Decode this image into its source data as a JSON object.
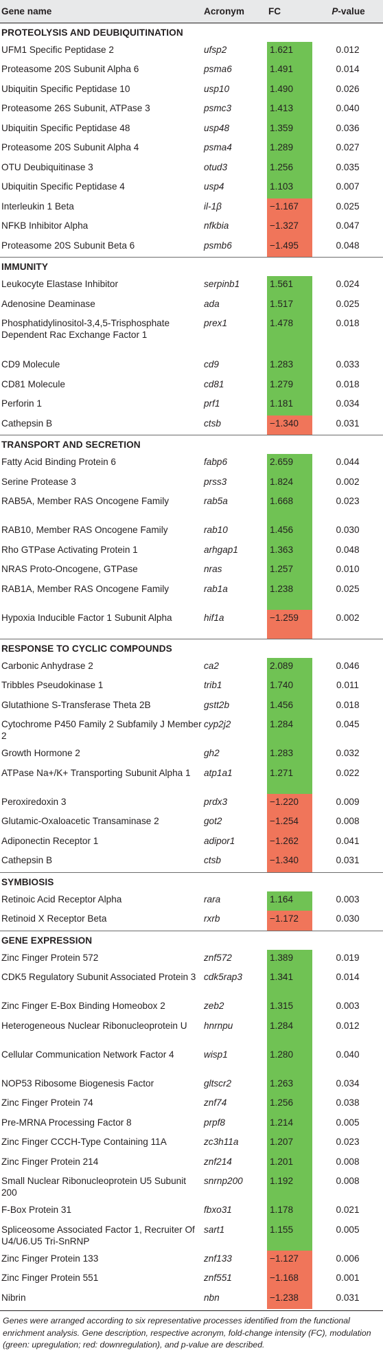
{
  "header": {
    "gene_name": "Gene name",
    "acronym": "Acronym",
    "fc": "FC",
    "pvalue_p": "P",
    "pvalue_rest": "-value"
  },
  "sections": [
    {
      "title": "PROTEOLYSIS AND DEUBIQUITINATION",
      "rows": [
        {
          "name": "UFM1 Specific Peptidase 2",
          "acronym": "ufsp2",
          "fc": "1.621",
          "reg": "up",
          "p": "0.012",
          "lines": 1
        },
        {
          "name": "Proteasome 20S Subunit Alpha 6",
          "acronym": "psma6",
          "fc": "1.491",
          "reg": "up",
          "p": "0.014",
          "lines": 1
        },
        {
          "name": "Ubiquitin Specific Peptidase 10",
          "acronym": "usp10",
          "fc": "1.490",
          "reg": "up",
          "p": "0.026",
          "lines": 1
        },
        {
          "name": "Proteasome 26S Subunit, ATPase 3",
          "acronym": "psmc3",
          "fc": "1.413",
          "reg": "up",
          "p": "0.040",
          "lines": 1
        },
        {
          "name": "Ubiquitin Specific Peptidase 48",
          "acronym": "usp48",
          "fc": "1.359",
          "reg": "up",
          "p": "0.036",
          "lines": 1
        },
        {
          "name": "Proteasome 20S Subunit Alpha 4",
          "acronym": "psma4",
          "fc": "1.289",
          "reg": "up",
          "p": "0.027",
          "lines": 1
        },
        {
          "name": "OTU Deubiquitinase 3",
          "acronym": "otud3",
          "fc": "1.256",
          "reg": "up",
          "p": "0.035",
          "lines": 1
        },
        {
          "name": "Ubiquitin Specific Peptidase 4",
          "acronym": "usp4",
          "fc": "1.103",
          "reg": "up",
          "p": "0.007",
          "lines": 1
        },
        {
          "name": "Interleukin 1 Beta",
          "acronym": "il-1β",
          "fc": "−1.167",
          "reg": "down",
          "p": "0.025",
          "lines": 1
        },
        {
          "name": "NFKB Inhibitor Alpha",
          "acronym": "nfkbia",
          "fc": "−1.327",
          "reg": "down",
          "p": "0.047",
          "lines": 1
        },
        {
          "name": "Proteasome 20S Subunit Beta 6",
          "acronym": "psmb6",
          "fc": "−1.495",
          "reg": "down",
          "p": "0.048",
          "lines": 1
        }
      ]
    },
    {
      "title": "IMMUNITY",
      "rows": [
        {
          "name": "Leukocyte Elastase Inhibitor",
          "acronym": "serpinb1",
          "fc": "1.561",
          "reg": "up",
          "p": "0.024",
          "lines": 1
        },
        {
          "name": "Adenosine Deaminase",
          "acronym": "ada",
          "fc": "1.517",
          "reg": "up",
          "p": "0.025",
          "lines": 1
        },
        {
          "name": "Phosphatidylinositol-3,4,5-Trisphosphate Dependent Rac Exchange Factor 1",
          "acronym": "prex1",
          "fc": "1.478",
          "reg": "up",
          "p": "0.018",
          "lines": 3
        },
        {
          "name": "CD9 Molecule",
          "acronym": "cd9",
          "fc": "1.283",
          "reg": "up",
          "p": "0.033",
          "lines": 1
        },
        {
          "name": "CD81 Molecule",
          "acronym": "cd81",
          "fc": "1.279",
          "reg": "up",
          "p": "0.018",
          "lines": 1
        },
        {
          "name": "Perforin 1",
          "acronym": "prf1",
          "fc": "1.181",
          "reg": "up",
          "p": "0.034",
          "lines": 1
        },
        {
          "name": "Cathepsin B",
          "acronym": "ctsb",
          "fc": "−1.340",
          "reg": "down",
          "p": "0.031",
          "lines": 1
        }
      ]
    },
    {
      "title": "TRANSPORT AND SECRETION",
      "rows": [
        {
          "name": "Fatty Acid Binding Protein 6",
          "acronym": "fabp6",
          "fc": "2.659",
          "reg": "up",
          "p": "0.044",
          "lines": 1
        },
        {
          "name": "Serine Protease 3",
          "acronym": "prss3",
          "fc": "1.824",
          "reg": "up",
          "p": "0.002",
          "lines": 1
        },
        {
          "name": "RAB5A, Member RAS Oncogene Family",
          "acronym": "rab5a",
          "fc": "1.668",
          "reg": "up",
          "p": "0.023",
          "lines": 2
        },
        {
          "name": "RAB10, Member RAS Oncogene Family",
          "acronym": "rab10",
          "fc": "1.456",
          "reg": "up",
          "p": "0.030",
          "lines": 1
        },
        {
          "name": "Rho GTPase Activating Protein 1",
          "acronym": "arhgap1",
          "fc": "1.363",
          "reg": "up",
          "p": "0.048",
          "lines": 1
        },
        {
          "name": "NRAS Proto-Oncogene, GTPase",
          "acronym": "nras",
          "fc": "1.257",
          "reg": "up",
          "p": "0.010",
          "lines": 1
        },
        {
          "name": "RAB1A, Member RAS Oncogene Family",
          "acronym": "rab1a",
          "fc": "1.238",
          "reg": "up",
          "p": "0.025",
          "lines": 2
        },
        {
          "name": "Hypoxia Inducible Factor 1 Subunit Alpha",
          "acronym": "hif1a",
          "fc": "−1.259",
          "reg": "down",
          "p": "0.002",
          "lines": 2
        }
      ]
    },
    {
      "title": "RESPONSE TO CYCLIC COMPOUNDS",
      "rows": [
        {
          "name": "Carbonic Anhydrase 2",
          "acronym": "ca2",
          "fc": "2.089",
          "reg": "up",
          "p": "0.046",
          "lines": 1
        },
        {
          "name": "Tribbles Pseudokinase 1",
          "acronym": "trib1",
          "fc": "1.740",
          "reg": "up",
          "p": "0.011",
          "lines": 1
        },
        {
          "name": "Glutathione S-Transferase Theta 2B",
          "acronym": "gstt2b",
          "fc": "1.456",
          "reg": "up",
          "p": "0.018",
          "lines": 1
        },
        {
          "name": "Cytochrome P450 Family 2 Subfamily J Member 2",
          "acronym": "cyp2j2",
          "fc": "1.284",
          "reg": "up",
          "p": "0.045",
          "lines": 2
        },
        {
          "name": "Growth Hormone 2",
          "acronym": "gh2",
          "fc": "1.283",
          "reg": "up",
          "p": "0.032",
          "lines": 1
        },
        {
          "name": "ATPase Na+/K+ Transporting Subunit Alpha 1",
          "acronym": "atp1a1",
          "fc": "1.271",
          "reg": "up",
          "p": "0.022",
          "lines": 2
        },
        {
          "name": "Peroxiredoxin 3",
          "acronym": "prdx3",
          "fc": "−1.220",
          "reg": "down",
          "p": "0.009",
          "lines": 1
        },
        {
          "name": "Glutamic-Oxaloacetic Transaminase 2",
          "acronym": "got2",
          "fc": "−1.254",
          "reg": "down",
          "p": "0.008",
          "lines": 1
        },
        {
          "name": "Adiponectin Receptor 1",
          "acronym": "adipor1",
          "fc": "−1.262",
          "reg": "down",
          "p": "0.041",
          "lines": 1
        },
        {
          "name": "Cathepsin B",
          "acronym": "ctsb",
          "fc": "−1.340",
          "reg": "down",
          "p": "0.031",
          "lines": 1
        }
      ]
    },
    {
      "title": "SYMBIOSIS",
      "rows": [
        {
          "name": "Retinoic Acid Receptor Alpha",
          "acronym": "rara",
          "fc": "1.164",
          "reg": "up",
          "p": "0.003",
          "lines": 1
        },
        {
          "name": "Retinoid X Receptor Beta",
          "acronym": "rxrb",
          "fc": "−1.172",
          "reg": "down",
          "p": "0.030",
          "lines": 1
        }
      ]
    },
    {
      "title": "GENE EXPRESSION",
      "rows": [
        {
          "name": "Zinc Finger Protein 572",
          "acronym": "znf572",
          "fc": "1.389",
          "reg": "up",
          "p": "0.019",
          "lines": 1
        },
        {
          "name": "CDK5 Regulatory Subunit Associated Protein 3",
          "acronym": "cdk5rap3",
          "fc": "1.341",
          "reg": "up",
          "p": "0.014",
          "lines": 2
        },
        {
          "name": "Zinc Finger E-Box Binding Homeobox 2",
          "acronym": "zeb2",
          "fc": "1.315",
          "reg": "up",
          "p": "0.003",
          "lines": 1
        },
        {
          "name": "Heterogeneous Nuclear Ribonucleoprotein U",
          "acronym": "hnrnpu",
          "fc": "1.284",
          "reg": "up",
          "p": "0.012",
          "lines": 2
        },
        {
          "name": "Cellular Communication Network Factor 4",
          "acronym": "wisp1",
          "fc": "1.280",
          "reg": "up",
          "p": "0.040",
          "lines": 2
        },
        {
          "name": "NOP53 Ribosome Biogenesis Factor",
          "acronym": "gltscr2",
          "fc": "1.263",
          "reg": "up",
          "p": "0.034",
          "lines": 1
        },
        {
          "name": "Zinc Finger Protein 74",
          "acronym": "znf74",
          "fc": "1.256",
          "reg": "up",
          "p": "0.038",
          "lines": 1
        },
        {
          "name": "Pre-MRNA Processing Factor 8",
          "acronym": "prpf8",
          "fc": "1.214",
          "reg": "up",
          "p": "0.005",
          "lines": 1
        },
        {
          "name": "Zinc Finger CCCH-Type Containing 11A",
          "acronym": "zc3h11a",
          "fc": "1.207",
          "reg": "up",
          "p": "0.023",
          "lines": 1
        },
        {
          "name": "Zinc Finger Protein 214",
          "acronym": "znf214",
          "fc": "1.201",
          "reg": "up",
          "p": "0.008",
          "lines": 1
        },
        {
          "name": "Small Nuclear Ribonucleoprotein U5 Subunit 200",
          "acronym": "snrnp200",
          "fc": "1.192",
          "reg": "up",
          "p": "0.008",
          "lines": 2
        },
        {
          "name": "F-Box Protein 31",
          "acronym": "fbxo31",
          "fc": "1.178",
          "reg": "up",
          "p": "0.021",
          "lines": 1
        },
        {
          "name": "Spliceosome Associated Factor 1, Recruiter Of U4/U6.U5 Tri-SnRNP",
          "acronym": "sart1",
          "fc": "1.155",
          "reg": "up",
          "p": "0.005",
          "lines": 2
        },
        {
          "name": "Zinc Finger Protein 133",
          "acronym": "znf133",
          "fc": "−1.127",
          "reg": "down",
          "p": "0.006",
          "lines": 1
        },
        {
          "name": "Zinc Finger Protein 551",
          "acronym": "znf551",
          "fc": "−1.168",
          "reg": "down",
          "p": "0.001",
          "lines": 1
        },
        {
          "name": "Nibrin",
          "acronym": "nbn",
          "fc": "−1.238",
          "reg": "down",
          "p": "0.031",
          "lines": 1
        }
      ]
    }
  ],
  "colors": {
    "up": "#70c254",
    "down": "#f0755a"
  },
  "footnote": "Genes were arranged according to six representative processes identified from the functional enrichment analysis. Gene description, respective acronym, fold-change intensity (FC), modulation (green: upregulation; red: downregulation), and p-value are described."
}
